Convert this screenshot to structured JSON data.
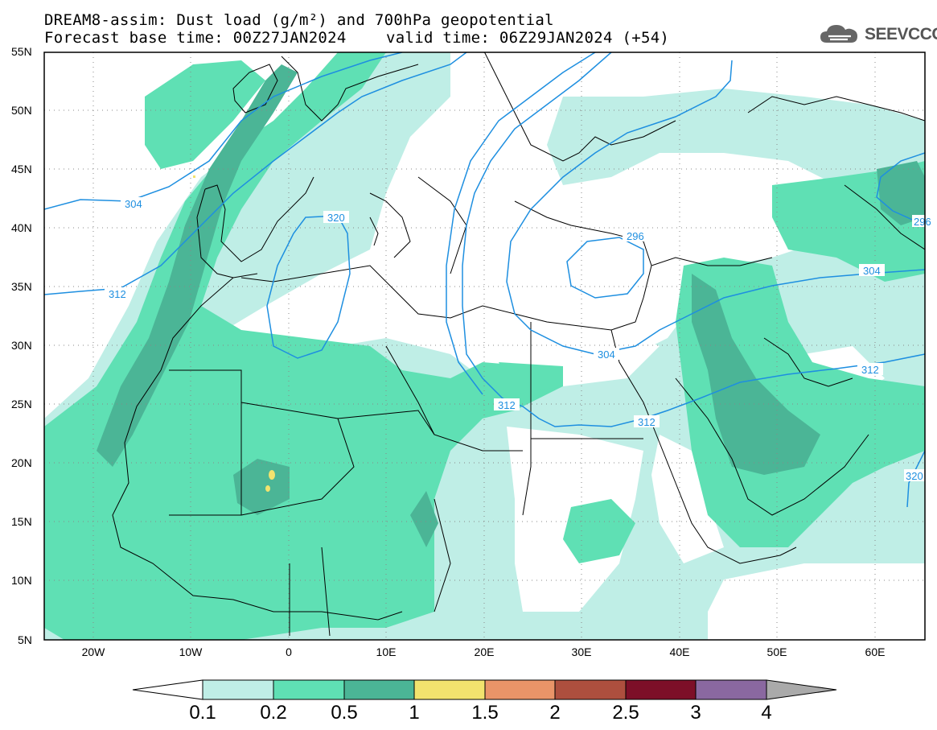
{
  "title": {
    "line1": "DREAM8-assim: Dust load (g/m²) and 700hPa geopotential",
    "base": "Forecast base time: 00Z27JAN2024",
    "valid": "valid time: 06Z29JAN2024 (+54)"
  },
  "logo": {
    "text": "SEEVCCC",
    "icon": "cloud-icon"
  },
  "axes": {
    "lat_labels": [
      "55N",
      "50N",
      "45N",
      "40N",
      "35N",
      "30N",
      "25N",
      "20N",
      "15N",
      "10N",
      "5N"
    ],
    "lon_labels": [
      "20W",
      "10W",
      "0",
      "10E",
      "20E",
      "30E",
      "40E",
      "50E",
      "60E"
    ]
  },
  "contour_labels": [
    "304",
    "312",
    "320",
    "296",
    "304",
    "312",
    "304",
    "312",
    "312",
    "320",
    "296"
  ],
  "colorbar": {
    "labels": [
      "0.1",
      "0.2",
      "0.5",
      "1",
      "1.5",
      "2",
      "2.5",
      "3",
      "4"
    ],
    "colors": [
      "#ffffff",
      "#bfeee6",
      "#5fe0b4",
      "#4bb596",
      "#f2e36e",
      "#e99468",
      "#ad4f3e",
      "#7d0f28",
      "#8a68a0",
      "#aaaaaa"
    ]
  },
  "colors": {
    "contour": "#1e8fe0",
    "dust_01": "#bfeee6",
    "dust_02": "#5fe0b4",
    "dust_05": "#4bb596",
    "dust_1": "#f2e36e"
  }
}
